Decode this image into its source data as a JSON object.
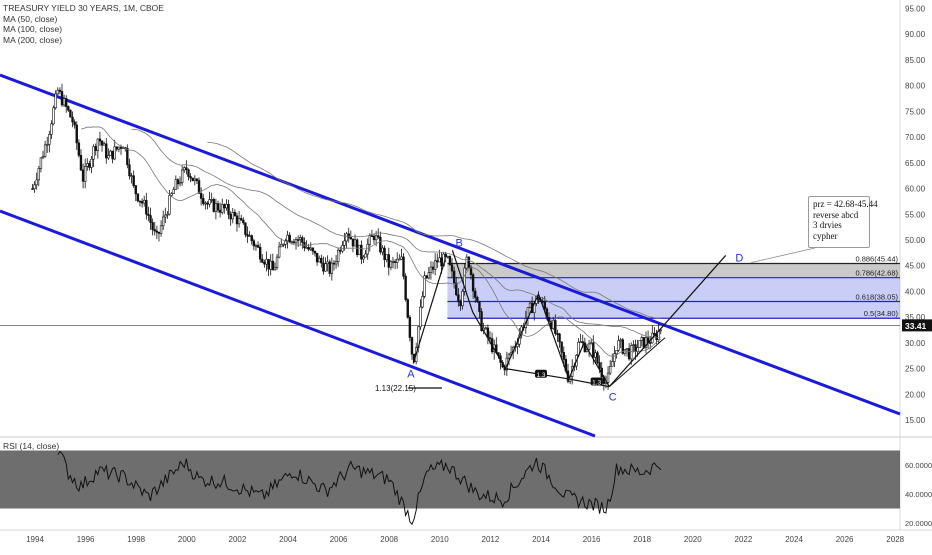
{
  "legend": {
    "title": "TREASURY YIELD 30 YEARS, 1M, CBOE",
    "ma50": "MA (50, close)",
    "ma100": "MA (100, close)",
    "ma200": "MA (200, close)"
  },
  "rsi_legend": "RSI (14, close)",
  "note": {
    "line1": "prz = 42.68-45.44",
    "line2": "reverse abcd",
    "line3": "3 drvies",
    "line4": "cypher"
  },
  "last_price": "33.41",
  "colors": {
    "channel": "#1a1adb",
    "fib_zone": "#9fa6ef",
    "top_zone": "#b8b8b8",
    "pattern": "#111111",
    "candles": "#111111",
    "last_label_bg": "#111111"
  },
  "chart_data": [
    {
      "type": "line",
      "subtype": "candlestick",
      "x_ticks": [
        "1994",
        "1996",
        "1998",
        "2000",
        "2002",
        "2004",
        "2006",
        "2008",
        "2010",
        "2012",
        "2014",
        "2016",
        "2018",
        "2020",
        "2022",
        "2024",
        "2026",
        "2028"
      ],
      "y_ticks": [
        "95.00",
        "90.00",
        "85.00",
        "80.00",
        "75.00",
        "70.00",
        "65.00",
        "60.00",
        "55.00",
        "50.00",
        "45.00",
        "40.00",
        "35.00",
        "30.00",
        "25.00",
        "20.00",
        "15.00"
      ],
      "ylim": [
        12,
        97
      ],
      "price_closes_approx": [
        {
          "x": 1993.9,
          "y": 60
        },
        {
          "x": 1994.5,
          "y": 70
        },
        {
          "x": 1994.9,
          "y": 79
        },
        {
          "x": 1995.5,
          "y": 73
        },
        {
          "x": 1995.9,
          "y": 62
        },
        {
          "x": 1996.5,
          "y": 70
        },
        {
          "x": 1996.9,
          "y": 66
        },
        {
          "x": 1997.5,
          "y": 69
        },
        {
          "x": 1997.9,
          "y": 60
        },
        {
          "x": 1998.4,
          "y": 56
        },
        {
          "x": 1998.8,
          "y": 50
        },
        {
          "x": 1999.5,
          "y": 60
        },
        {
          "x": 2000.0,
          "y": 64
        },
        {
          "x": 2000.8,
          "y": 57
        },
        {
          "x": 2001.5,
          "y": 56
        },
        {
          "x": 2002.0,
          "y": 54
        },
        {
          "x": 2002.7,
          "y": 49
        },
        {
          "x": 2003.4,
          "y": 44
        },
        {
          "x": 2003.9,
          "y": 51
        },
        {
          "x": 2004.5,
          "y": 50
        },
        {
          "x": 2005.2,
          "y": 46
        },
        {
          "x": 2005.7,
          "y": 44
        },
        {
          "x": 2006.3,
          "y": 52
        },
        {
          "x": 2006.9,
          "y": 47
        },
        {
          "x": 2007.4,
          "y": 51
        },
        {
          "x": 2008.0,
          "y": 45
        },
        {
          "x": 2008.5,
          "y": 46
        },
        {
          "x": 2008.95,
          "y": 26
        },
        {
          "x": 2009.4,
          "y": 42
        },
        {
          "x": 2009.9,
          "y": 46
        },
        {
          "x": 2010.3,
          "y": 46
        },
        {
          "x": 2010.8,
          "y": 38
        },
        {
          "x": 2011.1,
          "y": 47
        },
        {
          "x": 2011.6,
          "y": 34
        },
        {
          "x": 2012.0,
          "y": 30
        },
        {
          "x": 2012.5,
          "y": 25
        },
        {
          "x": 2013.0,
          "y": 30
        },
        {
          "x": 2013.5,
          "y": 36
        },
        {
          "x": 2013.9,
          "y": 39
        },
        {
          "x": 2014.5,
          "y": 33
        },
        {
          "x": 2015.1,
          "y": 23
        },
        {
          "x": 2015.5,
          "y": 30
        },
        {
          "x": 2016.0,
          "y": 29
        },
        {
          "x": 2016.6,
          "y": 22
        },
        {
          "x": 2017.0,
          "y": 30
        },
        {
          "x": 2017.5,
          "y": 28
        },
        {
          "x": 2018.0,
          "y": 30
        },
        {
          "x": 2018.5,
          "y": 31
        },
        {
          "x": 2018.8,
          "y": 33.41
        }
      ],
      "moving_averages": [
        "MA (50, close)",
        "MA (100, close)",
        "MA (200, close)"
      ],
      "horizontal_levels": [
        {
          "label": "0.886(45.44)",
          "value": 45.44
        },
        {
          "label": "0.786(42.68)",
          "value": 42.68
        },
        {
          "label": "0.618(38.05)",
          "value": 38.05
        },
        {
          "label": "0.5(34.80)",
          "value": 34.8
        }
      ],
      "pattern_points": [
        {
          "label": "A",
          "x": 2008.95,
          "y": 26
        },
        {
          "label": "B",
          "x": 2010.5,
          "y": 48
        },
        {
          "label": "C",
          "x": 2016.6,
          "y": 21.5
        },
        {
          "label": "D",
          "x": 2022.0,
          "y": 45.44
        }
      ],
      "annotations": [
        "1.13(22.15)",
        "1.3",
        "1.3"
      ],
      "last_value": 33.41
    },
    {
      "type": "line",
      "title": "RSI (14, close)",
      "y_ticks": [
        "60.0000",
        "40.0000",
        "20.0000"
      ],
      "ylim": [
        15,
        75
      ],
      "band": [
        30,
        70
      ],
      "values_approx": [
        {
          "x": 1994.9,
          "y": 72
        },
        {
          "x": 1995.3,
          "y": 55
        },
        {
          "x": 1995.8,
          "y": 45
        },
        {
          "x": 1996.5,
          "y": 56
        },
        {
          "x": 1997.5,
          "y": 52
        },
        {
          "x": 1998.5,
          "y": 38
        },
        {
          "x": 1999.9,
          "y": 62
        },
        {
          "x": 2000.5,
          "y": 50
        },
        {
          "x": 2001.5,
          "y": 48
        },
        {
          "x": 2003.0,
          "y": 38
        },
        {
          "x": 2004.2,
          "y": 56
        },
        {
          "x": 2005.5,
          "y": 42
        },
        {
          "x": 2006.5,
          "y": 58
        },
        {
          "x": 2008.0,
          "y": 50
        },
        {
          "x": 2008.9,
          "y": 22
        },
        {
          "x": 2009.5,
          "y": 55
        },
        {
          "x": 2010.3,
          "y": 60
        },
        {
          "x": 2011.5,
          "y": 40
        },
        {
          "x": 2012.5,
          "y": 36
        },
        {
          "x": 2013.8,
          "y": 63
        },
        {
          "x": 2015.0,
          "y": 38
        },
        {
          "x": 2016.6,
          "y": 30
        },
        {
          "x": 2017.0,
          "y": 58
        },
        {
          "x": 2018.0,
          "y": 55
        },
        {
          "x": 2018.8,
          "y": 62
        }
      ]
    }
  ]
}
